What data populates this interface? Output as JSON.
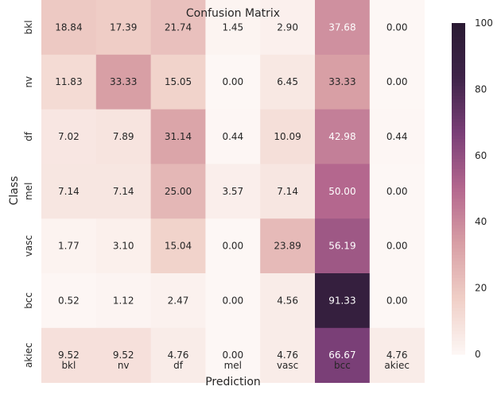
{
  "chart_data": {
    "type": "heatmap",
    "title": "Confusion Matrix",
    "xlabel": "Prediction",
    "ylabel": "Class",
    "x_categories": [
      "bkl",
      "nv",
      "df",
      "mel",
      "vasc",
      "bcc",
      "akiec"
    ],
    "y_categories": [
      "bkl",
      "nv",
      "df",
      "mel",
      "vasc",
      "bcc",
      "akiec"
    ],
    "values": [
      [
        18.84,
        17.39,
        21.74,
        1.45,
        2.9,
        37.68,
        0.0
      ],
      [
        11.83,
        33.33,
        15.05,
        0.0,
        6.45,
        33.33,
        0.0
      ],
      [
        7.02,
        7.89,
        31.14,
        0.44,
        10.09,
        42.98,
        0.44
      ],
      [
        7.14,
        7.14,
        25.0,
        3.57,
        7.14,
        50.0,
        0.0
      ],
      [
        1.77,
        3.1,
        15.04,
        0.0,
        23.89,
        56.19,
        0.0
      ],
      [
        0.52,
        1.12,
        2.47,
        0.0,
        4.56,
        91.33,
        0.0
      ],
      [
        9.52,
        9.52,
        4.76,
        0.0,
        4.76,
        66.67,
        4.76
      ]
    ],
    "value_labels": [
      [
        "18.84",
        "17.39",
        "21.74",
        "1.45",
        "2.90",
        "37.68",
        "0.00"
      ],
      [
        "11.83",
        "33.33",
        "15.05",
        "0.00",
        "6.45",
        "33.33",
        "0.00"
      ],
      [
        "7.02",
        "7.89",
        "31.14",
        "0.44",
        "10.09",
        "42.98",
        "0.44"
      ],
      [
        "7.14",
        "7.14",
        "25.00",
        "3.57",
        "7.14",
        "50.00",
        "0.00"
      ],
      [
        "1.77",
        "3.10",
        "15.04",
        "0.00",
        "23.89",
        "56.19",
        "0.00"
      ],
      [
        "0.52",
        "1.12",
        "2.47",
        "0.00",
        "4.56",
        "91.33",
        "0.00"
      ],
      [
        "9.52",
        "9.52",
        "4.76",
        "0.00",
        "4.76",
        "66.67",
        "4.76"
      ]
    ],
    "colorbar": {
      "vmin": 0,
      "vmax": 100,
      "ticks": [
        0,
        20,
        40,
        60,
        80,
        100
      ],
      "tick_labels": [
        "0",
        "20",
        "40",
        "60",
        "80",
        "100"
      ]
    },
    "colormap": [
      "#fdf7f5",
      "#f0cfc7",
      "#d89fa5",
      "#b4678e",
      "#7a3f77",
      "#3f2449",
      "#2a1a33"
    ]
  }
}
